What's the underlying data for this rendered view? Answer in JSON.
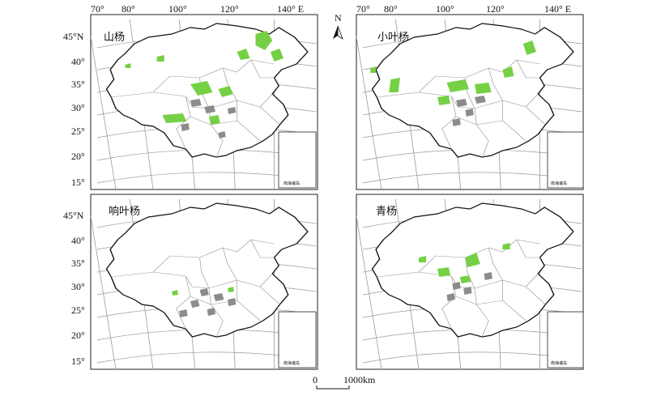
{
  "figure": {
    "panels": [
      {
        "id": "shanyang",
        "title": "山杨",
        "lat_labels": [
          "45°N",
          "40°",
          "35°",
          "30°",
          "25°",
          "20°",
          "15°"
        ],
        "lon_labels": [
          "70°",
          "80°",
          "100°",
          "120°",
          "140° E"
        ],
        "inset_label": "南海诸岛"
      },
      {
        "id": "xiaoyeyang",
        "title": "小叶杨",
        "lat_labels": [],
        "lon_labels": [
          "70°",
          "80°",
          "100°",
          "120°",
          "140° E"
        ],
        "inset_label": "南海诸岛"
      },
      {
        "id": "xiangyeyang",
        "title": "响叶杨",
        "lat_labels": [
          "45°N",
          "40°",
          "35°",
          "30°",
          "25°",
          "20°",
          "15°"
        ],
        "lon_labels": [],
        "inset_label": "南海诸岛"
      },
      {
        "id": "qingyang",
        "title": "青杨",
        "lat_labels": [],
        "lon_labels": [],
        "inset_label": "南海诸岛"
      }
    ],
    "north_arrow": "N",
    "scale_bar": {
      "start": "0",
      "end": "1000km"
    },
    "colors": {
      "distribution": "#76d045",
      "county": "#8c8c8c",
      "boundary": "#111111",
      "graticule": "#9a9a9a"
    }
  }
}
